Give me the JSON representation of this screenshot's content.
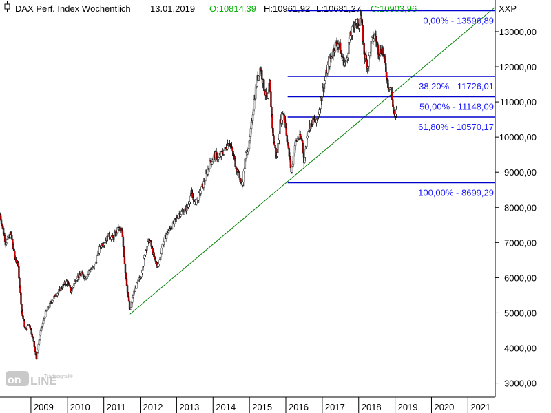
{
  "header": {
    "title": "DAX Perf. Index Wöchentlich",
    "date": "13.01.2019",
    "open": "O:10814,39",
    "high": "H:10961,92",
    "low": "L:10681,27",
    "close": "C:10903,96",
    "exchange": "XXP"
  },
  "watermark": {
    "small": "Tradesignal®",
    "brand": "online"
  },
  "colors": {
    "up": "#ffffff",
    "down": "#cc0000",
    "wick": "#000000",
    "fib": "#0000cc",
    "trend": "#008000",
    "value_text": "#00b000"
  },
  "chart_data": {
    "type": "candlestick",
    "timeframe": "weekly",
    "ylim": [
      2600,
      13900
    ],
    "xlim": [
      2008.15,
      2021.75
    ],
    "yticks": [
      "3000,00",
      "4000,00",
      "5000,00",
      "6000,00",
      "7000,00",
      "8000,00",
      "9000,00",
      "10000,00",
      "11000,00",
      "12000,00",
      "13000,00"
    ],
    "ytick_values": [
      3000,
      4000,
      5000,
      6000,
      7000,
      8000,
      9000,
      10000,
      11000,
      12000,
      13000
    ],
    "xticks": [
      "2009",
      "2010",
      "2011",
      "2012",
      "2013",
      "2014",
      "2015",
      "2016",
      "2017",
      "2018",
      "2019",
      "2020",
      "2021"
    ],
    "xtick_values": [
      2009,
      2010,
      2011,
      2012,
      2013,
      2014,
      2015,
      2016,
      2017,
      2018,
      2019,
      2020,
      2021
    ],
    "fibonacci": {
      "x_start": 2016.05,
      "x_end": 2021.75,
      "levels": [
        {
          "label": "0,00% - 13596,89",
          "value": 13596.89
        },
        {
          "label": "38,20% - 11726,01",
          "value": 11726.01
        },
        {
          "label": "50,00% - 11148,09",
          "value": 11148.09
        },
        {
          "label": "61,80% - 10570,17",
          "value": 10570.17
        },
        {
          "label": "100,00% - 8699,29",
          "value": 8699.29
        }
      ]
    },
    "trendline": {
      "x1": 2011.72,
      "y1": 4965,
      "x2": 2021.75,
      "y2": 13700
    },
    "price_path": [
      [
        2008.15,
        7800
      ],
      [
        2008.3,
        7000
      ],
      [
        2008.45,
        7250
      ],
      [
        2008.55,
        6600
      ],
      [
        2008.65,
        6300
      ],
      [
        2008.75,
        5000
      ],
      [
        2008.85,
        4500
      ],
      [
        2008.95,
        4700
      ],
      [
        2009.05,
        4300
      ],
      [
        2009.15,
        3700
      ],
      [
        2009.25,
        4400
      ],
      [
        2009.4,
        5000
      ],
      [
        2009.5,
        5200
      ],
      [
        2009.6,
        5400
      ],
      [
        2009.75,
        5600
      ],
      [
        2009.9,
        5800
      ],
      [
        2010.0,
        5900
      ],
      [
        2010.1,
        5600
      ],
      [
        2010.25,
        6000
      ],
      [
        2010.4,
        6100
      ],
      [
        2010.5,
        6000
      ],
      [
        2010.6,
        6200
      ],
      [
        2010.75,
        6300
      ],
      [
        2010.9,
        6900
      ],
      [
        2011.0,
        7000
      ],
      [
        2011.15,
        7200
      ],
      [
        2011.25,
        7100
      ],
      [
        2011.4,
        7400
      ],
      [
        2011.5,
        7300
      ],
      [
        2011.6,
        6100
      ],
      [
        2011.72,
        5000
      ],
      [
        2011.8,
        5500
      ],
      [
        2011.9,
        5800
      ],
      [
        2012.0,
        6000
      ],
      [
        2012.15,
        6800
      ],
      [
        2012.25,
        7100
      ],
      [
        2012.4,
        6500
      ],
      [
        2012.5,
        6300
      ],
      [
        2012.6,
        6900
      ],
      [
        2012.75,
        7300
      ],
      [
        2012.9,
        7500
      ],
      [
        2013.05,
        7800
      ],
      [
        2013.2,
        7900
      ],
      [
        2013.3,
        8000
      ],
      [
        2013.4,
        8400
      ],
      [
        2013.5,
        8100
      ],
      [
        2013.6,
        8300
      ],
      [
        2013.75,
        8700
      ],
      [
        2013.9,
        9200
      ],
      [
        2014.05,
        9500
      ],
      [
        2014.15,
        9400
      ],
      [
        2014.3,
        9600
      ],
      [
        2014.45,
        9900
      ],
      [
        2014.55,
        9500
      ],
      [
        2014.65,
        9100
      ],
      [
        2014.8,
        8600
      ],
      [
        2014.9,
        9500
      ],
      [
        2015.0,
        9800
      ],
      [
        2015.1,
        10800
      ],
      [
        2015.2,
        11600
      ],
      [
        2015.3,
        12000
      ],
      [
        2015.4,
        11400
      ],
      [
        2015.5,
        11000
      ],
      [
        2015.55,
        11600
      ],
      [
        2015.65,
        10000
      ],
      [
        2015.75,
        9400
      ],
      [
        2015.85,
        10500
      ],
      [
        2015.95,
        10700
      ],
      [
        2016.05,
        9800
      ],
      [
        2016.15,
        9000
      ],
      [
        2016.25,
        9800
      ],
      [
        2016.35,
        10000
      ],
      [
        2016.45,
        9900
      ],
      [
        2016.5,
        9300
      ],
      [
        2016.6,
        10200
      ],
      [
        2016.75,
        10500
      ],
      [
        2016.85,
        10400
      ],
      [
        2016.95,
        11000
      ],
      [
        2017.05,
        11500
      ],
      [
        2017.15,
        12000
      ],
      [
        2017.25,
        12300
      ],
      [
        2017.35,
        12600
      ],
      [
        2017.45,
        12700
      ],
      [
        2017.55,
        12200
      ],
      [
        2017.65,
        12100
      ],
      [
        2017.75,
        12800
      ],
      [
        2017.85,
        13100
      ],
      [
        2017.9,
        13300
      ],
      [
        2018.0,
        13200
      ],
      [
        2018.05,
        13500
      ],
      [
        2018.15,
        12400
      ],
      [
        2018.25,
        12000
      ],
      [
        2018.35,
        12700
      ],
      [
        2018.45,
        12900
      ],
      [
        2018.55,
        12400
      ],
      [
        2018.65,
        12500
      ],
      [
        2018.72,
        12100
      ],
      [
        2018.8,
        11500
      ],
      [
        2018.88,
        11400
      ],
      [
        2018.95,
        10800
      ],
      [
        2019.0,
        10500
      ],
      [
        2019.05,
        10800
      ]
    ]
  }
}
